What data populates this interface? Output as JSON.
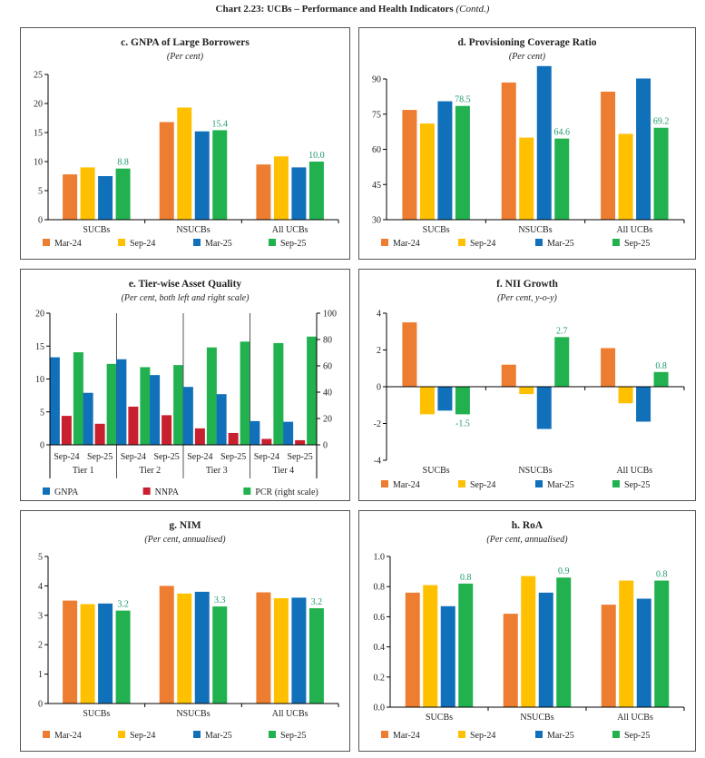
{
  "page": {
    "title": "Chart 2.23: UCBs – Performance and Health Indicators",
    "title_suffix": "(Contd.)"
  },
  "colors": {
    "Mar-24": "#ED7D31",
    "Sep-24": "#FFC000",
    "Mar-25": "#1170BA",
    "Sep-25": "#21B24F",
    "GNPA": "#1170BA",
    "NNPA": "#C8202E",
    "PCR": "#21B24F",
    "label": "#1E9A6A"
  },
  "chart_data": [
    {
      "type": "bar",
      "title": "c. GNPA of Large Borrowers",
      "subtitle": "(Per cent)",
      "categories": [
        "SUCBs",
        "NSUCBs",
        "All UCBs"
      ],
      "ylim": [
        0,
        25
      ],
      "yticks": [
        "0",
        "5",
        "10",
        "15",
        "20",
        "25"
      ],
      "series": [
        {
          "name": "Mar-24",
          "values": [
            7.8,
            16.8,
            9.5
          ]
        },
        {
          "name": "Sep-24",
          "values": [
            9.0,
            19.3,
            10.9
          ]
        },
        {
          "name": "Mar-25",
          "values": [
            7.5,
            15.2,
            9.0
          ]
        },
        {
          "name": "Sep-25",
          "values": [
            8.8,
            15.4,
            10.0
          ],
          "labels": [
            "8.8",
            "15.4",
            "10.0"
          ]
        }
      ],
      "legend": "bottom"
    },
    {
      "type": "bar",
      "title": "d. Provisioning Coverage Ratio",
      "subtitle": "(Per cent)",
      "categories": [
        "SUCBs",
        "NSUCBs",
        "All UCBs"
      ],
      "ylim": [
        30,
        90
      ],
      "yticks": [
        "30",
        "45",
        "60",
        "75",
        "90"
      ],
      "series": [
        {
          "name": "Mar-24",
          "values": [
            76.8,
            88.5,
            84.6
          ]
        },
        {
          "name": "Sep-24",
          "values": [
            71.0,
            65.0,
            66.6
          ]
        },
        {
          "name": "Mar-25",
          "values": [
            80.5,
            95.5,
            90.2
          ]
        },
        {
          "name": "Sep-25",
          "values": [
            78.5,
            64.6,
            69.2
          ],
          "labels": [
            "78.5",
            "64.6",
            "69.2"
          ]
        }
      ],
      "legend": "bottom"
    },
    {
      "type": "bar",
      "title": "e. Tier-wise Asset Quality",
      "subtitle": "(Per cent, both left and right scale)",
      "groups": [
        "Tier 1",
        "Tier 2",
        "Tier 3",
        "Tier 4"
      ],
      "subcategories": [
        "Sep-24",
        "Sep-25"
      ],
      "ylim": [
        0,
        20
      ],
      "yticks": [
        "0",
        "5",
        "10",
        "15",
        "20"
      ],
      "y2lim": [
        0,
        100
      ],
      "y2ticks": [
        "0",
        "20",
        "40",
        "60",
        "80",
        "100"
      ],
      "series": [
        {
          "name": "GNPA",
          "axis": "left",
          "values": [
            13.3,
            7.9,
            13.0,
            10.6,
            8.8,
            7.7,
            3.6,
            3.5
          ]
        },
        {
          "name": "NNPA",
          "axis": "left",
          "values": [
            4.4,
            3.2,
            5.8,
            4.5,
            2.5,
            1.8,
            0.9,
            0.7
          ]
        },
        {
          "name": "PCR (right scale)",
          "axis": "right",
          "values": [
            70.3,
            61.5,
            59.0,
            60.6,
            74.0,
            78.4,
            77.3,
            82.2
          ]
        }
      ],
      "legend": "bottom"
    },
    {
      "type": "bar",
      "title": "f. NII Growth",
      "subtitle": "(Per cent, y-o-y)",
      "categories": [
        "SUCBs",
        "NSUCBs",
        "All UCBs"
      ],
      "ylim": [
        -4,
        4
      ],
      "yticks": [
        "-4",
        "-2",
        "0",
        "2",
        "4"
      ],
      "series": [
        {
          "name": "Mar-24",
          "values": [
            3.5,
            1.2,
            2.1
          ]
        },
        {
          "name": "Sep-24",
          "values": [
            -1.5,
            -0.4,
            -0.9
          ]
        },
        {
          "name": "Mar-25",
          "values": [
            -1.3,
            -2.3,
            -1.9
          ]
        },
        {
          "name": "Sep-25",
          "values": [
            -1.5,
            2.7,
            0.8
          ],
          "labels": [
            "-1.5",
            "2.7",
            "0.8"
          ]
        }
      ],
      "legend": "bottom"
    },
    {
      "type": "bar",
      "title": "g. NIM",
      "subtitle": "(Per cent, annualised)",
      "categories": [
        "SUCBs",
        "NSUCBs",
        "All UCBs"
      ],
      "ylim": [
        0,
        5
      ],
      "yticks": [
        "0",
        "1",
        "2",
        "3",
        "4",
        "5"
      ],
      "series": [
        {
          "name": "Mar-24",
          "values": [
            3.5,
            4.0,
            3.78
          ]
        },
        {
          "name": "Sep-24",
          "values": [
            3.38,
            3.74,
            3.58
          ]
        },
        {
          "name": "Mar-25",
          "values": [
            3.4,
            3.8,
            3.6
          ]
        },
        {
          "name": "Sep-25",
          "values": [
            3.16,
            3.3,
            3.24
          ],
          "labels": [
            "3.2",
            "3.3",
            "3.2"
          ]
        }
      ],
      "legend": "bottom"
    },
    {
      "type": "bar",
      "title": "h. RoA",
      "subtitle": "(Per cent, annualised)",
      "categories": [
        "SUCBs",
        "NSUCBs",
        "All UCBs"
      ],
      "ylim": [
        0,
        1.0
      ],
      "yticks": [
        "0.0",
        "0.2",
        "0.4",
        "0.6",
        "0.8",
        "1.0"
      ],
      "series": [
        {
          "name": "Mar-24",
          "values": [
            0.76,
            0.62,
            0.68
          ]
        },
        {
          "name": "Sep-24",
          "values": [
            0.81,
            0.87,
            0.84
          ]
        },
        {
          "name": "Mar-25",
          "values": [
            0.67,
            0.76,
            0.72
          ]
        },
        {
          "name": "Sep-25",
          "values": [
            0.82,
            0.86,
            0.84
          ],
          "labels": [
            "0.8",
            "0.9",
            "0.8"
          ]
        }
      ],
      "legend": "bottom"
    }
  ]
}
